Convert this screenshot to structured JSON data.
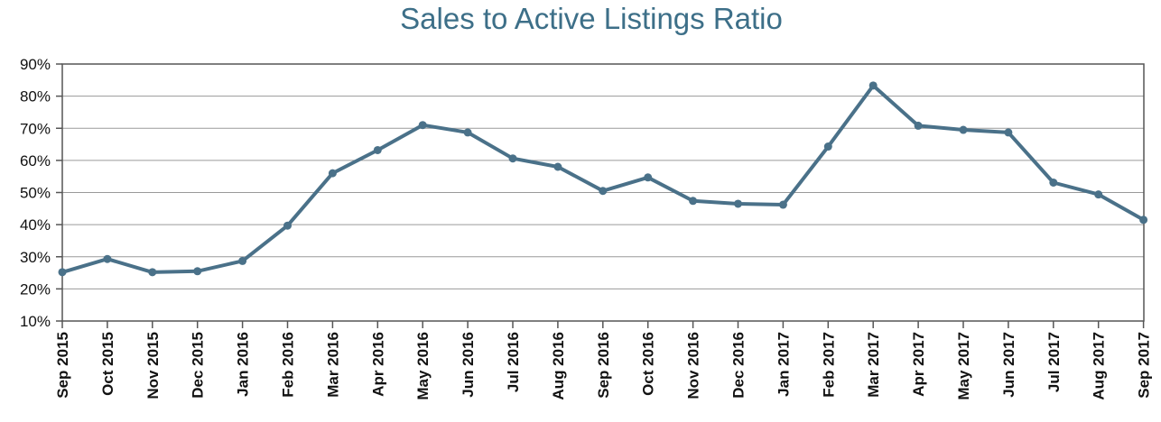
{
  "chart_data": {
    "type": "line",
    "title": "Sales to Active Listings Ratio",
    "xlabel": "",
    "ylabel": "",
    "categories": [
      "Sep 2015",
      "Oct 2015",
      "Nov 2015",
      "Dec 2015",
      "Jan 2016",
      "Feb 2016",
      "Mar 2016",
      "Apr 2016",
      "May 2016",
      "Jun 2016",
      "Jul 2016",
      "Aug 2016",
      "Sep 2016",
      "Oct 2016",
      "Nov 2016",
      "Dec 2016",
      "Jan 2017",
      "Feb 2017",
      "Mar 2017",
      "Apr 2017",
      "May 2017",
      "Jun 2017",
      "Jul 2017",
      "Aug 2017",
      "Sep 2017"
    ],
    "series": [
      {
        "values": [
          25.2,
          29.3,
          25.2,
          25.5,
          28.7,
          39.7,
          56.0,
          63.2,
          71.0,
          68.7,
          60.6,
          58.0,
          50.5,
          54.7,
          47.4,
          46.5,
          46.2,
          64.3,
          83.3,
          70.8,
          69.5,
          68.7,
          53.1,
          49.4,
          41.5
        ]
      }
    ],
    "ylim": [
      10,
      90
    ],
    "yticks": [
      10,
      20,
      30,
      40,
      50,
      60,
      70,
      80,
      90
    ],
    "ytick_labels": [
      "10%",
      "20%",
      "30%",
      "40%",
      "50%",
      "60%",
      "70%",
      "80%",
      "90%"
    ],
    "grid": true,
    "line_color": "#4a7189",
    "title_color": "#3d6f88"
  }
}
